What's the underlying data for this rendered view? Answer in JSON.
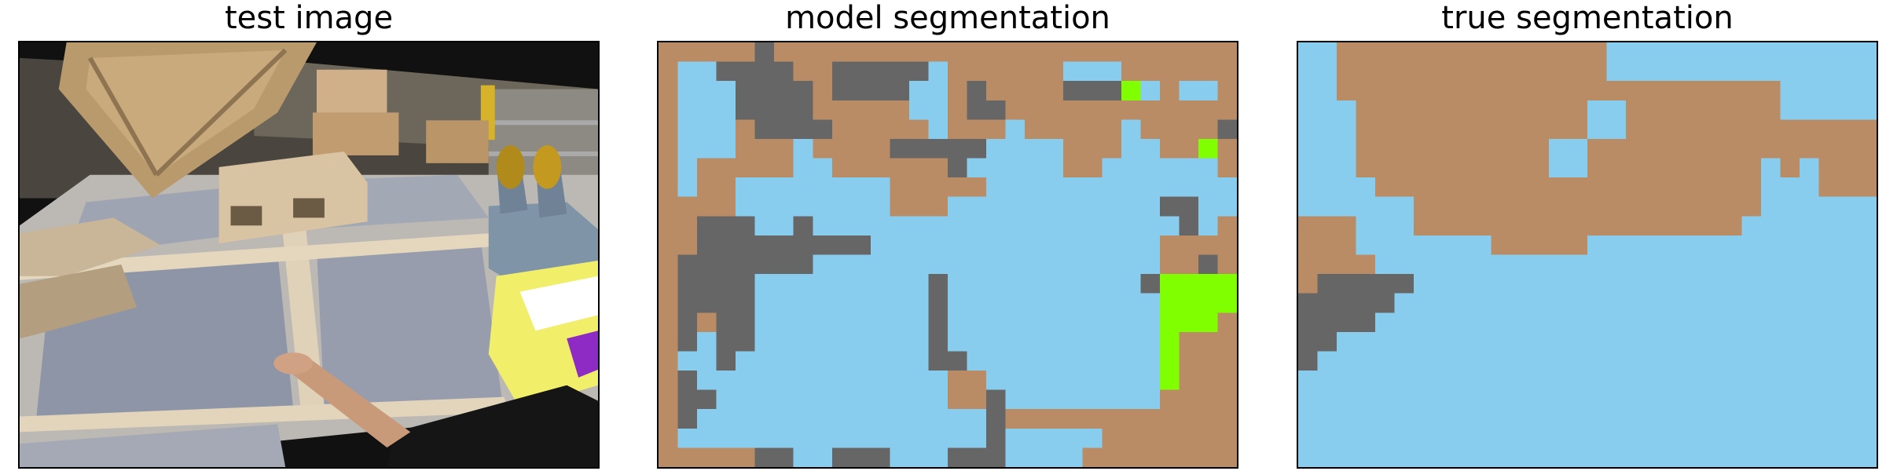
{
  "panels": {
    "test": {
      "title": "test image"
    },
    "model": {
      "title": "model segmentation"
    },
    "truth": {
      "title": "true segmentation"
    }
  },
  "colors": {
    "brown": "#ba8c66",
    "blue": "#89cdee",
    "gray": "#666666",
    "green": "#80ff00"
  },
  "segmentation": {
    "cols": 30,
    "rows": 22,
    "model_rows": [
      "BBBBBGBBBBBBBBBBBBBBBBBBBBBBBB",
      "BLLGGGGBBGGGGGLBBBBBBLLLBBBBBB",
      "BLLLGGGGBGGGGLLBGBBBBGGGXLBLLB",
      "BLLLGGGGBBBBBLLBGGBBBBBBBBBBBB",
      "BLLLBGGGGBBBBBLBBBLBBBBBLBBBBG",
      "BLLLBBBLBBBBGGGGGLLLLBBBLLBBXB",
      "BLBBBBBLLBBBBBBGLLLLLBBLLLLLLB",
      "BLBBLLLLLLLLBBBBBLLLLLLLLLLLLL",
      "BBBBLLLLLLLLBBBLLLLLLLLLLLGGLL",
      "BBGGGLLGLLLLLLLLLLLLLLLLLLLGLB",
      "BBGGGGGGGGGLLLLLLLLLLLLLLLBBBB",
      "BGGGGGGGLLLLLLLLLLLLLLLLLLBBGB",
      "BGGGGLLLLLLLLLGLLLLLLLLLLGXXXX",
      "BGGGGLLLLLLLLLGLLLLLLLLLLLXXXX",
      "BGBGGLLLLLLLLLGLLLLLLLLLLLXXXB",
      "BGLGGLLLLLLLLLGLLLLLLLLLLLXBBB",
      "BLLGLLLLLLLLLLGGLLLLLLLLLLXBBB",
      "BGLLLLLLLLLLLLLBBLLLLLLLLLXBBB",
      "BGGLLLLLLLLLLLLBBGLLLLLLLLBBBB",
      "BGLLLLLLLLLLLLLLLGBBBBBBBBBBBB",
      "BLLLLLLLLLLLLLLLLGLLLLLBBBBBBB",
      "BBBBBGGLLGGGLLLGGGLLLLBBBBBBBB"
    ],
    "truth_rows": [
      "LLBBBBBBBBBBBBBBLLLLLLLLLLLLLL",
      "LLBBBBBBBBBBBBBBLLLLLLLLLLLLLL",
      "LLBBBBBBBBBBBBBBBBBBBBBBBLLLLL",
      "LLLBBBBBBBBBBBBLLBBBBBBBBLLLLL",
      "LLLBBBBBBBBBBBBLLBBBBBBBBBBBBB",
      "LLLBBBBBBBBBBLLBBBBBBBBBBBBBBB",
      "LLLBBBBBBBBBBLLBBBBBBBBBLBLBBB",
      "LLLLBBBBBBBBBBBBBBBBBBBBLLLBBB",
      "LLLLLLBBBBBBBBBBBBBBBBBBLLLLLL",
      "BBBLLLBBBBBBBBBBBBBBBBBLLLLLLL",
      "BBBLLLLLLLBBBBBLLLLLLLLLLLLLLL",
      "BBBBLLLLLLLLLLLLLLLLLLLLLLLLLL",
      "BGGGGGLLLLLLLLLLLLLLLLLLLLLLLL",
      "GGGGGLLLLLLLLLLLLLLLLLLLLLLLLL",
      "GGGGLLLLLLLLLLLLLLLLLLLLLLLLLL",
      "GGLLLLLLLLLLLLLLLLLLLLLLLLLLLL",
      "GLLLLLLLLLLLLLLLLLLLLLLLLLLLLL",
      "LLLLLLLLLLLLLLLLLLLLLLLLLLLLLL",
      "LLLLLLLLLLLLLLLLLLLLLLLLLLLLLL",
      "LLLLLLLLLLLLLLLLLLLLLLLLLLLLLL",
      "LLLLLLLLLLLLLLLLLLLLLLLLLLLLLL",
      "LLLLLLLLLLLLLLLLLLLLLLLLLLLLLL"
    ]
  }
}
